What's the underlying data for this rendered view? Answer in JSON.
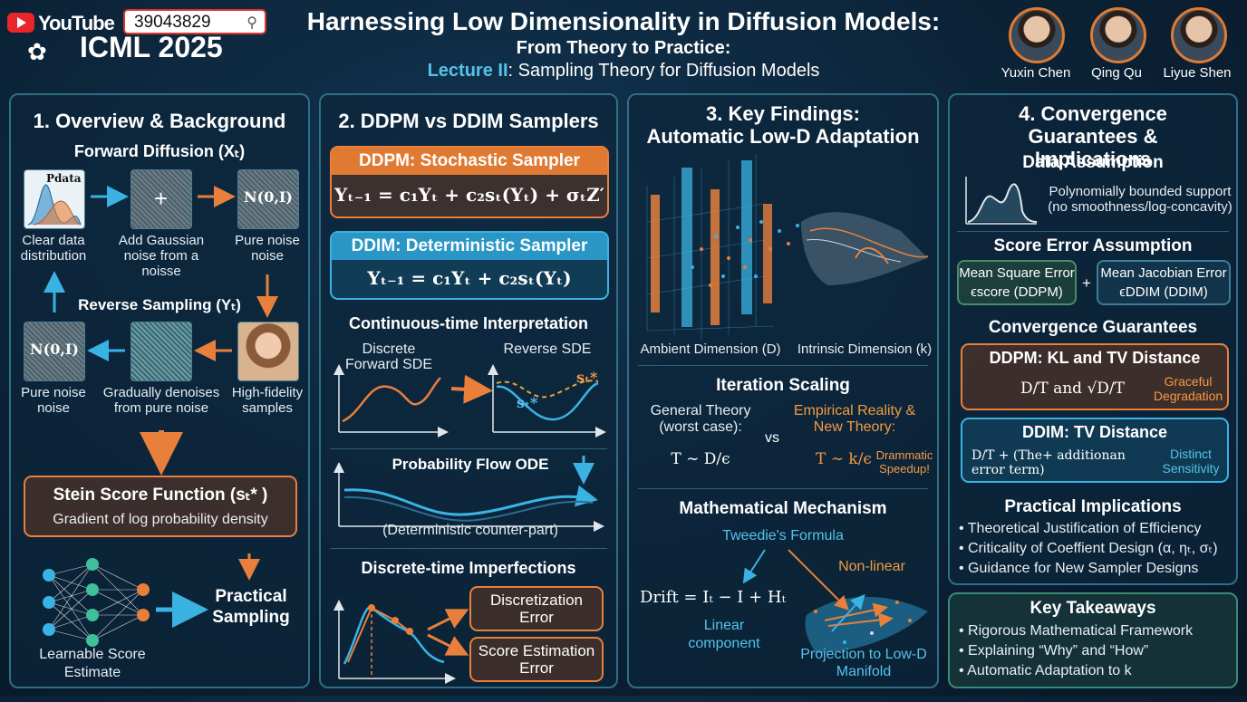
{
  "header": {
    "youtube": "YouTube",
    "search_value": "39043829",
    "conference": "ICML 2025",
    "title": "Harnessing Low Dimensionality in Diffusion Models:",
    "subtitle": "From Theory to Practice:",
    "lecture_prefix": "Lecture II",
    "lecture_rest": ": Sampling Theory for Diffusion Models",
    "speakers": [
      "Yuxin Chen",
      "Qing Qu",
      "Liyue Shen"
    ]
  },
  "p1": {
    "title": "1. Overview & Background",
    "forward": "Forward Diffusion (Xₜ)",
    "pdata": "Pdata",
    "normal": "N(0,I)",
    "clear": "Clear data distribution",
    "add_noise": "Add Gaussian noise from a noisse",
    "pure_noise": "Pure noise noise",
    "reverse": "Reverse Sampling (Yₜ)",
    "pure_noise2": "Pure noise noise",
    "denoise": "Gradually denoises from pure noise",
    "hifi": "High-fidelity samples",
    "stein_title": "Stein Score Function (sₜ* )",
    "stein_sub": "Gradient of log probability density",
    "learnable": "Learnable Score Estimate",
    "practical": "Practical Sampling"
  },
  "p2": {
    "title": "2. DDPM vs DDIM Samplers",
    "ddpm_title": "DDPM: Stochastic Sampler",
    "ddpm_eq": "Yₜ₋₁ = c₁Yₜ + c₂sₜ(Yₜ) + σₜZ′",
    "ddim_title": "DDIM: Deterministic Sampler",
    "ddim_eq": "Yₜ₋₁ = c₁Yₜ + c₂sₜ(Yₜ)",
    "cont_title": "Continuous-time Interpretation",
    "discrete": "Discrete Forward SDE",
    "reverse_sde": "Reverse SDE",
    "s_star": "sₜ*",
    "flow_title": "Probability Flow ODE",
    "flow_sub": "(Deterministic counter-part)",
    "imperf_title": "Discrete-time Imperfections",
    "err1": "Discretization Error",
    "err2": "Score Estimation Error"
  },
  "p3": {
    "title1": "3. Key Findings:",
    "title2": "Automatic Low-D Adaptation",
    "ambient": "Ambient Dimension (D)",
    "intrinsic": "Intrinsic Dimension (k)",
    "iter_title": "Iteration Scaling",
    "general": "General Theory (worst case):",
    "general_eq": "T ∼ D/ϵ",
    "vs": "vs",
    "empirical": "Empirical Reality & New Theory:",
    "empirical_eq": "T ∼ k/ϵ",
    "speedup": "Drammatic Speedup!",
    "mech_title": "Mathematical Mechanism",
    "tweedie": "Tweedie's Formula",
    "nonlinear": "Non-linear",
    "drift": "Drift = Iₜ − I + Hₜ",
    "linear": "Linear component",
    "projection": "Projection to Low-D Manifold"
  },
  "p4": {
    "title": "4. Convergence Guarantees & Implications",
    "data_title": "Data Assumption",
    "data_text": "Polynomially bounded support (no smoothness/log-concavity)",
    "score_title": "Score Error Assumption",
    "mse": "Mean Square Error",
    "mse_sub": "ϵscore (DDPM)",
    "plus": "+",
    "mje": "Mean Jacobian Error",
    "mje_sub": "ϵDDIM (DDIM)",
    "conv_title": "Convergence Guarantees",
    "ddpm_kl": "DDPM: KL and TV Distance",
    "ddpm_formula": "D/T and √D/T",
    "graceful": "Graceful Degradation",
    "ddim_tv": "DDIM: TV Distance",
    "ddim_formula": "D/T + (The+ additionan error term)",
    "distinct": "Distinct Sensitivity",
    "impl_title": "Practical Implications",
    "impl": [
      "Theoretical Justification of Efficiency",
      "Criticality of Coeffient Design (α, ηₜ, σₜ)",
      "Guidance for New Sampler Designs"
    ],
    "take_title": "Key Takeaways",
    "takeaways": [
      "Rigorous Mathematical Framework",
      "Explaining “Why” and “How”",
      "Automatic Adaptation to k"
    ]
  }
}
